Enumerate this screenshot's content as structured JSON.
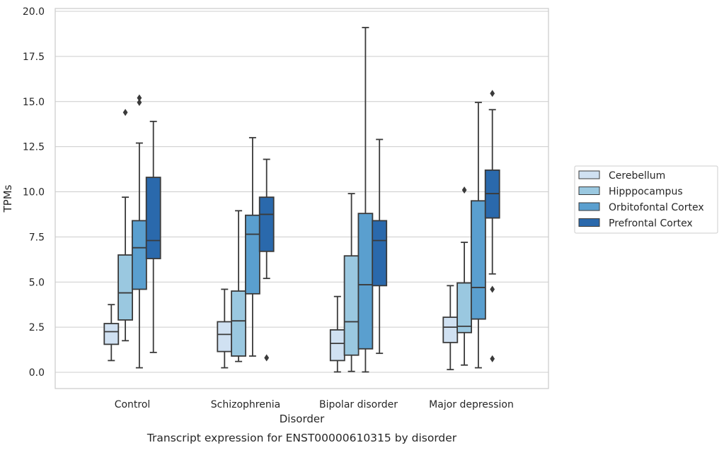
{
  "chart_data": {
    "type": "box",
    "xlabel": "Disorder",
    "ylabel": "TPMs",
    "caption": "Transcript expression for ENST00000610315 by disorder",
    "ylim": [
      -0.9,
      20.1
    ],
    "yticks": [
      "0.0",
      "2.5",
      "5.0",
      "7.5",
      "10.0",
      "12.5",
      "15.0",
      "17.5",
      "20.0"
    ],
    "grid": "horizontal",
    "legend_position": "right",
    "categories": [
      "Control",
      "Schizophrenia",
      "Bipolar disorder",
      "Major depression"
    ],
    "series": [
      {
        "name": "Cerebellum",
        "color": "#d0e1f2",
        "boxes": [
          {
            "whislo": 0.65,
            "q1": 1.55,
            "med": 2.25,
            "q3": 2.7,
            "whishi": 3.75,
            "fliers": []
          },
          {
            "whislo": 0.25,
            "q1": 1.15,
            "med": 2.1,
            "q3": 2.8,
            "whishi": 4.6,
            "fliers": []
          },
          {
            "whislo": 0.02,
            "q1": 0.65,
            "med": 1.6,
            "q3": 2.35,
            "whishi": 4.2,
            "fliers": []
          },
          {
            "whislo": 0.15,
            "q1": 1.65,
            "med": 2.5,
            "q3": 3.05,
            "whishi": 4.8,
            "fliers": []
          }
        ]
      },
      {
        "name": "Hipppocampus",
        "color": "#9ac8e0",
        "boxes": [
          {
            "whislo": 1.75,
            "q1": 2.9,
            "med": 4.4,
            "q3": 6.5,
            "whishi": 9.7,
            "fliers": [
              14.4
            ]
          },
          {
            "whislo": 0.6,
            "q1": 0.9,
            "med": 2.85,
            "q3": 4.5,
            "whishi": 8.95,
            "fliers": []
          },
          {
            "whislo": 0.05,
            "q1": 0.95,
            "med": 2.8,
            "q3": 6.45,
            "whishi": 9.9,
            "fliers": []
          },
          {
            "whislo": 0.4,
            "q1": 2.2,
            "med": 2.55,
            "q3": 4.95,
            "whishi": 7.2,
            "fliers": [
              10.1
            ]
          }
        ]
      },
      {
        "name": "Orbitofontal Cortex",
        "color": "#5a9fcf",
        "boxes": [
          {
            "whislo": 0.25,
            "q1": 4.6,
            "med": 6.9,
            "q3": 8.4,
            "whishi": 12.7,
            "fliers": [
              14.95,
              15.2
            ]
          },
          {
            "whislo": 0.9,
            "q1": 4.35,
            "med": 7.65,
            "q3": 8.7,
            "whishi": 13.0,
            "fliers": []
          },
          {
            "whislo": 0.02,
            "q1": 1.3,
            "med": 4.85,
            "q3": 8.8,
            "whishi": 19.1,
            "fliers": []
          },
          {
            "whislo": 0.25,
            "q1": 2.95,
            "med": 4.7,
            "q3": 9.5,
            "whishi": 14.95,
            "fliers": []
          }
        ]
      },
      {
        "name": "Prefrontal Cortex",
        "color": "#2a69ac",
        "boxes": [
          {
            "whislo": 1.1,
            "q1": 6.3,
            "med": 7.3,
            "q3": 10.8,
            "whishi": 13.9,
            "fliers": []
          },
          {
            "whislo": 5.2,
            "q1": 6.7,
            "med": 8.75,
            "q3": 9.7,
            "whishi": 11.8,
            "fliers": [
              0.8
            ]
          },
          {
            "whislo": 1.05,
            "q1": 4.8,
            "med": 7.3,
            "q3": 8.4,
            "whishi": 12.9,
            "fliers": []
          },
          {
            "whislo": 5.45,
            "q1": 8.55,
            "med": 9.9,
            "q3": 11.2,
            "whishi": 14.55,
            "fliers": [
              15.45,
              4.6,
              0.75
            ]
          }
        ]
      }
    ]
  }
}
